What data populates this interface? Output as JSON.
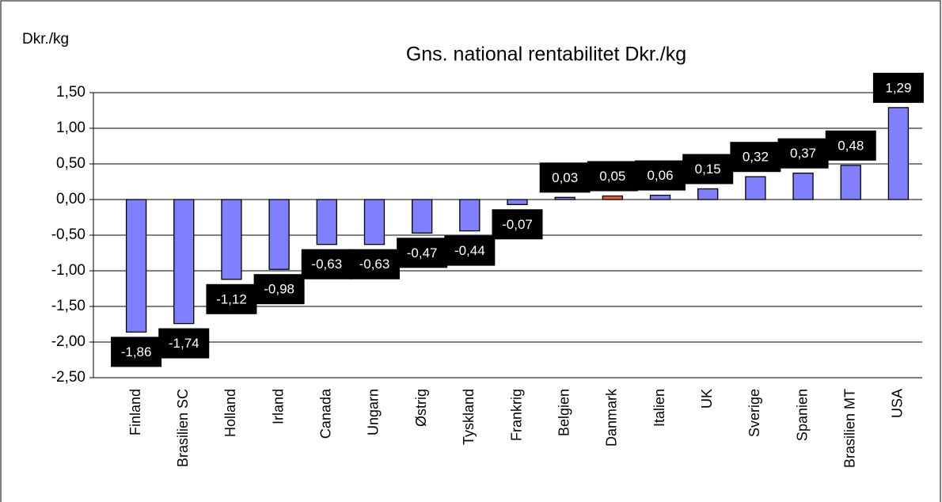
{
  "chart_data": {
    "type": "bar",
    "title": "Gns. national rentabilitet Dkr./kg",
    "y_label": "Dkr./kg",
    "categories": [
      "Finland",
      "Brasilien SC",
      "Holland",
      "Irland",
      "Canada",
      "Ungarn",
      "Østrig",
      "Tyskland",
      "Frankrig",
      "Belgien",
      "Danmark",
      "Italien",
      "UK",
      "Sverige",
      "Spanien",
      "Brasilien MT",
      "USA"
    ],
    "values": [
      -1.86,
      -1.74,
      -1.12,
      -0.98,
      -0.63,
      -0.63,
      -0.47,
      -0.44,
      -0.07,
      0.03,
      0.05,
      0.06,
      0.15,
      0.32,
      0.37,
      0.48,
      1.29
    ],
    "value_labels": [
      "-1,86",
      "-1,74",
      "-1,12",
      "-0,98",
      "-0,63",
      "-0,63",
      "-0,47",
      "-0,44",
      "-0,07",
      "0,03",
      "0,05",
      "0,06",
      "0,15",
      "0,32",
      "0,37",
      "0,48",
      "1,29"
    ],
    "colors": [
      "#8080ff",
      "#8080ff",
      "#8080ff",
      "#8080ff",
      "#8080ff",
      "#8080ff",
      "#8080ff",
      "#8080ff",
      "#8080ff",
      "#8080ff",
      "#e8602c",
      "#8080ff",
      "#8080ff",
      "#8080ff",
      "#8080ff",
      "#8080ff",
      "#8080ff"
    ],
    "ylim": [
      -2.5,
      1.5
    ],
    "yticks": [
      {
        "value": -2.5,
        "label": "-2,50"
      },
      {
        "value": -2,
        "label": "-2,00"
      },
      {
        "value": -1.5,
        "label": "-1,50"
      },
      {
        "value": -1,
        "label": "-1,00"
      },
      {
        "value": -0.5,
        "label": "-0,50"
      },
      {
        "value": 0,
        "label": "0,00"
      },
      {
        "value": 0.5,
        "label": "0,50"
      },
      {
        "value": 1,
        "label": "1,00"
      },
      {
        "value": 1.5,
        "label": "1,50"
      }
    ],
    "grid": true
  }
}
